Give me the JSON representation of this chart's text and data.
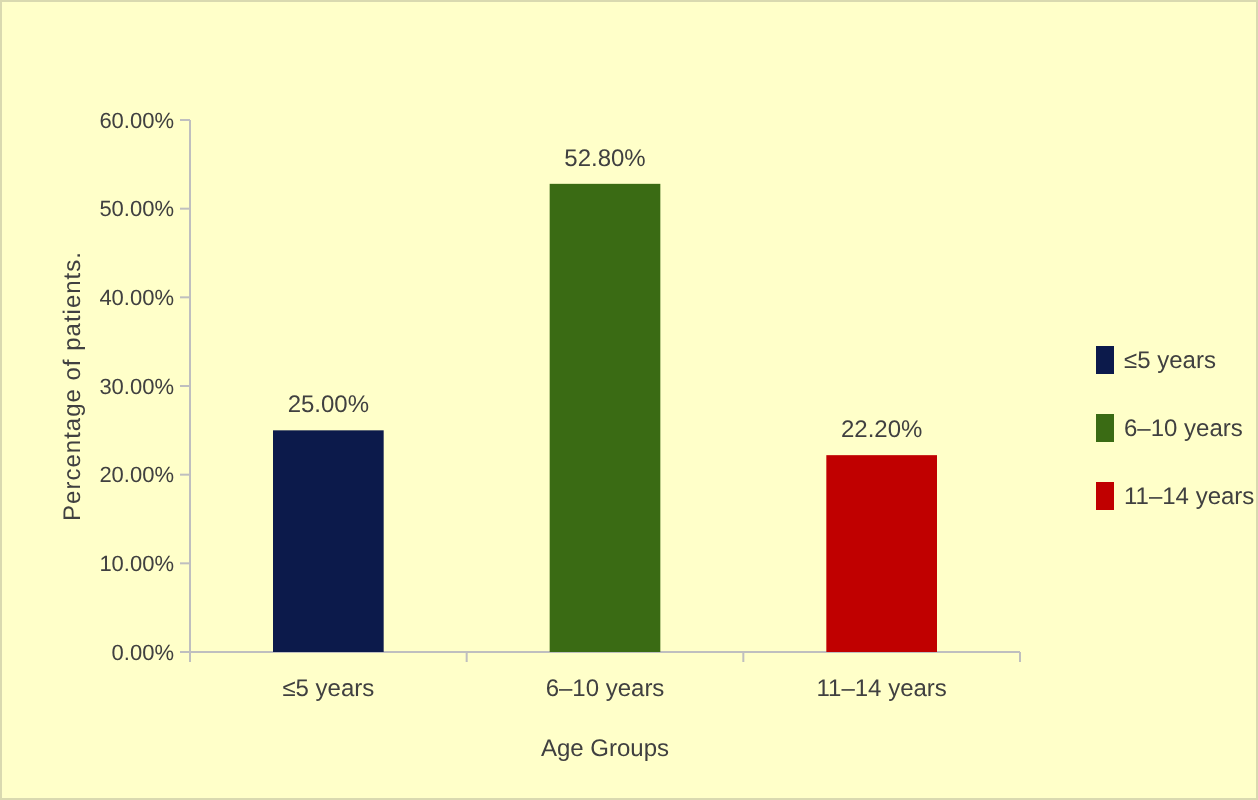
{
  "chart_data": {
    "type": "bar",
    "xlabel": "Age Groups",
    "ylabel": "Percentage of patients.",
    "categories": [
      "≤5 years",
      "6–10 years",
      "11–14 years"
    ],
    "series": [
      {
        "name": "≤5 years",
        "color": "#0c1a4b",
        "values": [
          25,
          null,
          null
        ],
        "value_labels": [
          "25.00%",
          null,
          null
        ]
      },
      {
        "name": "6–10 years",
        "color": "#3a6b14",
        "values": [
          null,
          52.8,
          null
        ],
        "value_labels": [
          null,
          "52.80%",
          null
        ]
      },
      {
        "name": "11–14 years",
        "color": "#c00000",
        "values": [
          null,
          null,
          22.2
        ],
        "value_labels": [
          null,
          null,
          "22.20%"
        ]
      }
    ],
    "ylim": [
      0,
      60
    ],
    "yticks": [
      {
        "value": 0,
        "label": "0.00%"
      },
      {
        "value": 10,
        "label": "10.00%"
      },
      {
        "value": 20,
        "label": "20.00%"
      },
      {
        "value": 30,
        "label": "30.00%"
      },
      {
        "value": 40,
        "label": "40.00%"
      },
      {
        "value": 50,
        "label": "50.00%"
      },
      {
        "value": 60,
        "label": "60.00%"
      }
    ],
    "grid": false,
    "legend": "right"
  }
}
